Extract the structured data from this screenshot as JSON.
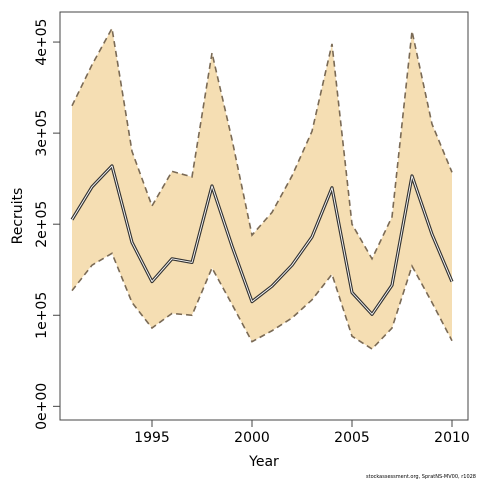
{
  "chart_data": {
    "type": "line",
    "title": "",
    "xlabel": "Year",
    "ylabel": "Recruits",
    "xlim": [
      1990.4,
      2010.8
    ],
    "ylim": [
      -15000,
      433000
    ],
    "x_ticks": [
      1995,
      2000,
      2005,
      2010
    ],
    "y_ticks": [
      0,
      100000,
      200000,
      300000,
      400000
    ],
    "y_tick_labels": [
      "0e+00",
      "1e+05",
      "2e+05",
      "3e+05",
      "4e+05"
    ],
    "grid": false,
    "band_color": "#f5deb3",
    "x": [
      1991,
      1992,
      1993,
      1994,
      1995,
      1996,
      1997,
      1998,
      1999,
      2000,
      2001,
      2002,
      2003,
      2004,
      2005,
      2006,
      2007,
      2008,
      2009,
      2010
    ],
    "series": [
      {
        "role": "upper",
        "values": [
          330000,
          375000,
          415000,
          280000,
          220000,
          258000,
          252000,
          388000,
          293000,
          188000,
          213000,
          253000,
          302000,
          398000,
          200000,
          162000,
          208000,
          412000,
          310000,
          257000
        ]
      },
      {
        "role": "estimate",
        "values": [
          205000,
          241000,
          264000,
          180000,
          137000,
          162000,
          158000,
          242000,
          176000,
          115000,
          132000,
          155000,
          186000,
          240000,
          125000,
          101000,
          133000,
          253000,
          189000,
          137000
        ]
      },
      {
        "role": "lower",
        "values": [
          127000,
          155000,
          168000,
          114000,
          86000,
          102000,
          100000,
          152000,
          112000,
          71000,
          83000,
          97000,
          117000,
          145000,
          77000,
          63000,
          86000,
          154000,
          114000,
          72000
        ]
      }
    ]
  },
  "footer": {
    "credit": "stockassessment.org, SpratNS-MV00, r1028"
  }
}
